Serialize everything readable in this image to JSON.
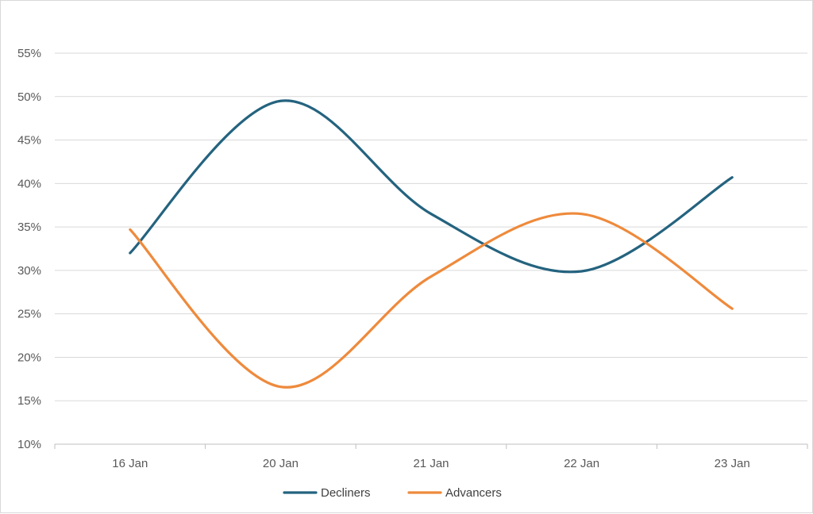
{
  "chart_data": {
    "type": "line",
    "smooth": true,
    "categories": [
      "16 Jan",
      "20 Jan",
      "21 Jan",
      "22 Jan",
      "23 Jan"
    ],
    "series": [
      {
        "name": "Decliners",
        "color": "#24637f",
        "values": [
          32.0,
          49.5,
          36.5,
          29.9,
          40.7
        ]
      },
      {
        "name": "Advancers",
        "color": "#ee8a3c",
        "values": [
          34.7,
          16.6,
          29.3,
          36.5,
          25.6
        ]
      }
    ],
    "ylim": [
      10,
      55
    ],
    "ytick_step": 5,
    "yticks": [
      "10%",
      "15%",
      "20%",
      "25%",
      "30%",
      "35%",
      "40%",
      "45%",
      "50%",
      "55%"
    ],
    "grid": true,
    "legend_position": "bottom",
    "title": "",
    "xlabel": "",
    "ylabel": ""
  }
}
